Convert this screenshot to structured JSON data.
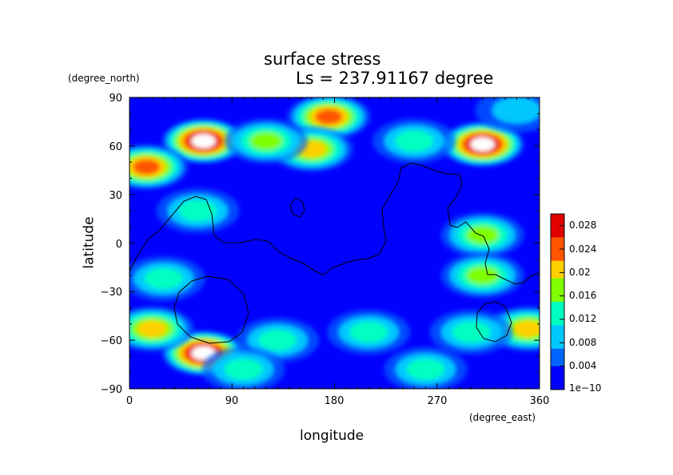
{
  "title": "surface stress",
  "subtitle": "Ls = 237.91167 degree",
  "chart_data": {
    "type": "heatmap",
    "xlabel": "longitude",
    "ylabel": "latitude",
    "x_units": "(degree_east)",
    "y_units": "(degree_north)",
    "xlim": [
      0,
      360
    ],
    "ylim": [
      -90,
      90
    ],
    "x_ticks": [
      "0",
      "90",
      "180",
      "270",
      "360"
    ],
    "y_ticks": [
      "90",
      "60",
      "30",
      "0",
      "−30",
      "−60",
      "−90"
    ],
    "colorbar": {
      "labels": [
        "0.028",
        "0.024",
        "0.02",
        "0.016",
        "0.012",
        "0.008",
        "0.004",
        "1e−10"
      ],
      "levels": [
        0.028,
        0.024,
        0.02,
        0.016,
        0.012,
        0.008,
        0.004,
        1e-10
      ],
      "min": 0,
      "max": 0.03,
      "colors": [
        "#0000ff",
        "#0066ff",
        "#00c8ff",
        "#00ffc0",
        "#7fff00",
        "#ffd000",
        "#ff5500",
        "#e00000"
      ]
    },
    "background_value": 0.004,
    "features": [
      {
        "lon": 65,
        "lat": 63,
        "value": 0.03
      },
      {
        "lon": 65,
        "lat": -68,
        "value": 0.03
      },
      {
        "lon": 310,
        "lat": 61,
        "value": 0.03
      },
      {
        "lon": 175,
        "lat": 78,
        "value": 0.024
      },
      {
        "lon": 160,
        "lat": 58,
        "value": 0.02
      },
      {
        "lon": 15,
        "lat": 47,
        "value": 0.024
      },
      {
        "lon": 120,
        "lat": 63,
        "value": 0.014
      },
      {
        "lon": 250,
        "lat": 63,
        "value": 0.012
      },
      {
        "lon": 20,
        "lat": -53,
        "value": 0.02
      },
      {
        "lon": 350,
        "lat": -53,
        "value": 0.02
      },
      {
        "lon": 310,
        "lat": 5,
        "value": 0.016
      },
      {
        "lon": 310,
        "lat": -20,
        "value": 0.014
      },
      {
        "lon": 210,
        "lat": -55,
        "value": 0.01
      },
      {
        "lon": 300,
        "lat": -55,
        "value": 0.01
      },
      {
        "lon": 130,
        "lat": -60,
        "value": 0.01
      },
      {
        "lon": 100,
        "lat": -78,
        "value": 0.012
      },
      {
        "lon": 260,
        "lat": -78,
        "value": 0.01
      },
      {
        "lon": 30,
        "lat": -22,
        "value": 0.01
      },
      {
        "lon": 60,
        "lat": 20,
        "value": 0.01
      },
      {
        "lon": 340,
        "lat": 82,
        "value": 0.008
      }
    ]
  }
}
